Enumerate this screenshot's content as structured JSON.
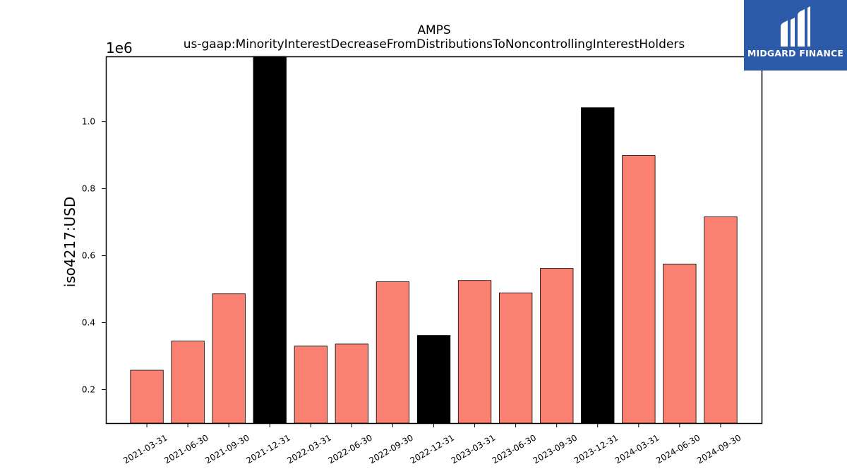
{
  "chart_data": {
    "type": "bar",
    "title": "AMPS",
    "subtitle": "us-gaap:MinorityInterestDecreaseFromDistributionsToNoncontrollingInterestHolders",
    "xlabel": "",
    "ylabel": "iso4217:USD",
    "y_multiplier_label": "1e6",
    "categories": [
      "2021-03-31",
      "2021-06-30",
      "2021-09-30",
      "2021-12-31",
      "2022-03-31",
      "2022-06-30",
      "2022-09-30",
      "2022-12-31",
      "2023-03-31",
      "2023-06-30",
      "2023-09-30",
      "2023-12-31",
      "2024-03-31",
      "2024-06-30",
      "2024-09-30"
    ],
    "values": [
      258000,
      345000,
      486000,
      1200000,
      330000,
      336000,
      522000,
      362000,
      526000,
      489000,
      562000,
      1042000,
      899000,
      575000,
      716000
    ],
    "highlight": [
      false,
      false,
      false,
      true,
      false,
      false,
      false,
      true,
      false,
      false,
      false,
      true,
      false,
      false,
      false
    ],
    "colors": {
      "normal": "#fa8072",
      "highlight": "#000000",
      "edge": "#000000"
    },
    "ylim": [
      100000,
      1195000
    ],
    "yticks": [
      200000,
      400000,
      600000,
      800000,
      1000000
    ],
    "ytick_labels": [
      "0.2",
      "0.4",
      "0.6",
      "0.8",
      "1.0"
    ],
    "grid": false,
    "legend": "none"
  },
  "brand": {
    "name": "MIDGARD FINANCE",
    "background": "#2c5aa8"
  }
}
